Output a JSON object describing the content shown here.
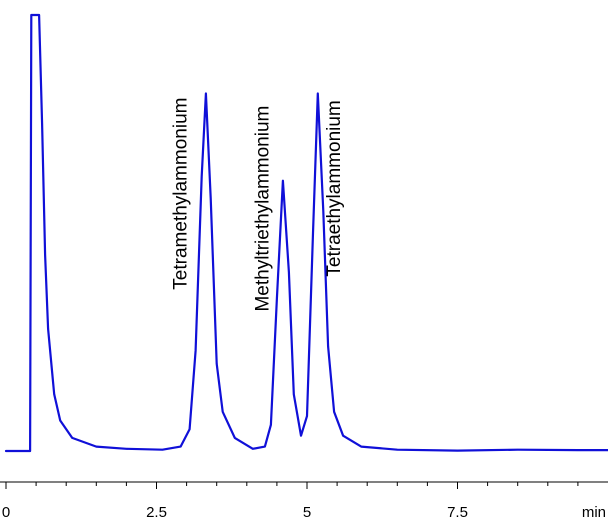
{
  "chart_data": {
    "type": "line",
    "title": "",
    "xlabel": "",
    "ylabel": "",
    "x_unit_label": "min",
    "xlim": [
      0,
      10
    ],
    "ylim": [
      0,
      1
    ],
    "grid": false,
    "legend": "none",
    "x_ticks": [
      0,
      2.5,
      5,
      7.5
    ],
    "x_tick_labels": [
      "0",
      "2.5",
      "5",
      "7.5"
    ],
    "x_minor_step": 0.5,
    "line_color": "#1010d8",
    "series": [
      {
        "points": [
          [
            0.0,
            0.0
          ],
          [
            0.4,
            0.0
          ],
          [
            0.42,
            1.0
          ],
          [
            0.55,
            1.0
          ],
          [
            0.6,
            0.75
          ],
          [
            0.65,
            0.45
          ],
          [
            0.7,
            0.28
          ],
          [
            0.8,
            0.13
          ],
          [
            0.9,
            0.07
          ],
          [
            1.1,
            0.03
          ],
          [
            1.5,
            0.01
          ],
          [
            2.0,
            0.005
          ],
          [
            2.6,
            0.003
          ],
          [
            2.9,
            0.01
          ],
          [
            3.05,
            0.05
          ],
          [
            3.15,
            0.23
          ],
          [
            3.25,
            0.63
          ],
          [
            3.32,
            0.82
          ],
          [
            3.4,
            0.58
          ],
          [
            3.5,
            0.2
          ],
          [
            3.6,
            0.09
          ],
          [
            3.8,
            0.03
          ],
          [
            4.1,
            0.005
          ],
          [
            4.3,
            0.01
          ],
          [
            4.4,
            0.06
          ],
          [
            4.5,
            0.35
          ],
          [
            4.6,
            0.62
          ],
          [
            4.7,
            0.41
          ],
          [
            4.78,
            0.13
          ],
          [
            4.9,
            0.035
          ],
          [
            5.0,
            0.08
          ],
          [
            5.1,
            0.5
          ],
          [
            5.18,
            0.82
          ],
          [
            5.27,
            0.55
          ],
          [
            5.35,
            0.24
          ],
          [
            5.45,
            0.09
          ],
          [
            5.6,
            0.035
          ],
          [
            5.9,
            0.01
          ],
          [
            6.5,
            0.003
          ],
          [
            7.5,
            0.001
          ],
          [
            8.5,
            0.003
          ],
          [
            9.5,
            0.002
          ],
          [
            10.0,
            0.002
          ]
        ]
      }
    ],
    "annotations": [
      {
        "text": "Tetramethylammonium",
        "x": 3.0,
        "y": 0.37
      },
      {
        "text": "Methyltriethylammonium",
        "x": 4.36,
        "y": 0.32
      },
      {
        "text": "Tetraethylammonium",
        "x": 5.55,
        "y": 0.4
      }
    ]
  }
}
